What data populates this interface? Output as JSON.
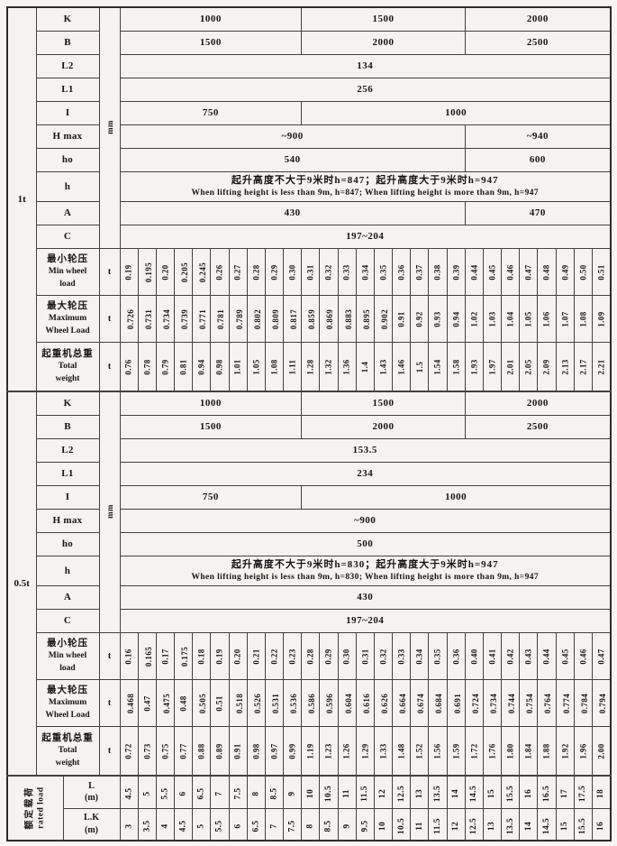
{
  "columns": 27,
  "sections": [
    {
      "load": "1t",
      "dim_unit": "mm",
      "dims": [
        {
          "label": "K",
          "cells": [
            [
              "1000",
              10
            ],
            [
              "1500",
              9
            ],
            [
              "2000",
              8
            ]
          ]
        },
        {
          "label": "B",
          "cells": [
            [
              "1500",
              10
            ],
            [
              "2000",
              9
            ],
            [
              "2500",
              8
            ]
          ]
        },
        {
          "label": "L2",
          "cells": [
            [
              "134",
              27
            ]
          ]
        },
        {
          "label": "L1",
          "cells": [
            [
              "256",
              27
            ]
          ]
        },
        {
          "label": "I",
          "cells": [
            [
              "750",
              10
            ],
            [
              "1000",
              17
            ]
          ]
        },
        {
          "label": "H max",
          "cells": [
            [
              "~900",
              19
            ],
            [
              "~940",
              8
            ]
          ]
        },
        {
          "label": "ho",
          "cells": [
            [
              "540",
              19
            ],
            [
              "600",
              8
            ]
          ]
        },
        {
          "label": "h",
          "lines": [
            "起升高度不大于9米时h=847；起升高度大于9米时h=947",
            "When lifting height is less than 9m, h=847; When lifting height is more than 9m, h=947"
          ]
        },
        {
          "label": "A",
          "cells": [
            [
              "430",
              19
            ],
            [
              "470",
              8
            ]
          ]
        },
        {
          "label": "C",
          "cells": [
            [
              "197~204",
              27
            ]
          ]
        }
      ],
      "wheels": [
        {
          "lines": [
            "最小轮压",
            "Min wheel",
            "load"
          ],
          "unit": "t",
          "values": [
            "0.19",
            "0.195",
            "0.20",
            "0.205",
            "0.245",
            "0.26",
            "0.27",
            "0.28",
            "0.29",
            "0.30",
            "0.31",
            "0.32",
            "0.33",
            "0.34",
            "0.35",
            "0.36",
            "0.37",
            "0.38",
            "0.39",
            "0.44",
            "0.45",
            "0.46",
            "0.47",
            "0.48",
            "0.49",
            "0.50",
            "0.51"
          ]
        },
        {
          "lines": [
            "最大轮压",
            "Maximum",
            "Wheel Load"
          ],
          "unit": "t",
          "values": [
            "0.726",
            "0.731",
            "0.734",
            "0.739",
            "0.771",
            "0.781",
            "0.789",
            "0.802",
            "0.809",
            "0.817",
            "0.859",
            "0.869",
            "0.883",
            "0.895",
            "0.902",
            "0.91",
            "0.92",
            "0.93",
            "0.94",
            "1.02",
            "1.03",
            "1.04",
            "1.05",
            "1.06",
            "1.07",
            "1.08",
            "1.09"
          ]
        },
        {
          "lines": [
            "起重机总重",
            "Total",
            "weight"
          ],
          "unit": "t",
          "values": [
            "0.76",
            "0.78",
            "0.79",
            "0.81",
            "0.94",
            "0.98",
            "1.01",
            "1.05",
            "1.08",
            "1.11",
            "1.28",
            "1.32",
            "1.36",
            "1.4",
            "1.43",
            "1.46",
            "1.5",
            "1.54",
            "1.58",
            "1.93",
            "1.97",
            "2.01",
            "2.05",
            "2.09",
            "2.13",
            "2.17",
            "2.21"
          ]
        }
      ]
    },
    {
      "load": "0.5t",
      "dim_unit": "mm",
      "dims": [
        {
          "label": "K",
          "cells": [
            [
              "1000",
              10
            ],
            [
              "1500",
              9
            ],
            [
              "2000",
              8
            ]
          ]
        },
        {
          "label": "B",
          "cells": [
            [
              "1500",
              10
            ],
            [
              "2000",
              9
            ],
            [
              "2500",
              8
            ]
          ]
        },
        {
          "label": "L2",
          "cells": [
            [
              "153.5",
              27
            ]
          ]
        },
        {
          "label": "L1",
          "cells": [
            [
              "234",
              27
            ]
          ]
        },
        {
          "label": "I",
          "cells": [
            [
              "750",
              10
            ],
            [
              "1000",
              17
            ]
          ]
        },
        {
          "label": "H max",
          "cells": [
            [
              "~900",
              27
            ]
          ]
        },
        {
          "label": "ho",
          "cells": [
            [
              "500",
              27
            ]
          ]
        },
        {
          "label": "h",
          "lines": [
            "起升高度不大于9米时h=830；起升高度大于9米时h=947",
            "When lifting height is less than 9m, h=830; When lifting height is more than 9m, h=947"
          ]
        },
        {
          "label": "A",
          "cells": [
            [
              "430",
              27
            ]
          ]
        },
        {
          "label": "C",
          "cells": [
            [
              "197~204",
              27
            ]
          ]
        }
      ],
      "wheels": [
        {
          "lines": [
            "最小轮压",
            "Min wheel",
            "load"
          ],
          "unit": "t",
          "values": [
            "0.16",
            "0.165",
            "0.17",
            "0.175",
            "0.18",
            "0.19",
            "0.20",
            "0.21",
            "0.22",
            "0.23",
            "0.28",
            "0.29",
            "0.30",
            "0.31",
            "0.32",
            "0.33",
            "0.34",
            "0.35",
            "0.36",
            "0.40",
            "0.41",
            "0.42",
            "0.43",
            "0.44",
            "0.45",
            "0.46",
            "0.47"
          ]
        },
        {
          "lines": [
            "最大轮压",
            "Maximum",
            "Wheel Load"
          ],
          "unit": "t",
          "values": [
            "0.468",
            "0.47",
            "0.475",
            "0.48",
            "0.505",
            "0.51",
            "0.518",
            "0.526",
            "0.531",
            "0.536",
            "0.586",
            "0.596",
            "0.604",
            "0.616",
            "0.626",
            "0.664",
            "0.674",
            "0.684",
            "0.691",
            "0.724",
            "0.734",
            "0.744",
            "0.754",
            "0.764",
            "0.774",
            "0.784",
            "0.794"
          ]
        },
        {
          "lines": [
            "起重机总重",
            "Total",
            "weight"
          ],
          "unit": "t",
          "values": [
            "0.72",
            "0.73",
            "0.75",
            "0.77",
            "0.88",
            "0.89",
            "0.91",
            "0.98",
            "0.97",
            "0.99",
            "1.19",
            "1.23",
            "1.26",
            "1.29",
            "1.33",
            "1.48",
            "1.52",
            "1.56",
            "1.59",
            "1.72",
            "1.76",
            "1.80",
            "1.84",
            "1.88",
            "1.92",
            "1.96",
            "2.00"
          ]
        }
      ]
    }
  ],
  "bottom": {
    "rated_cn": "额定载荷",
    "rated_en": "rated load",
    "rows": [
      {
        "label": "L",
        "unit": "(m)",
        "values": [
          "4.5",
          "5",
          "5.5",
          "6",
          "6.5",
          "7",
          "7.5",
          "8",
          "8.5",
          "9",
          "10",
          "10.5",
          "11",
          "11.5",
          "12",
          "12.5",
          "13",
          "13.5",
          "14",
          "14.5",
          "15",
          "15.5",
          "16",
          "16.5",
          "17",
          "17.5",
          "18"
        ]
      },
      {
        "label": "L.K",
        "unit": "(m)",
        "values": [
          "3",
          "3.5",
          "4",
          "4.5",
          "5",
          "5.5",
          "6",
          "6.5",
          "7",
          "7.5",
          "8",
          "8.5",
          "9",
          "9.5",
          "10",
          "10.5",
          "11",
          "11.5",
          "12",
          "12.5",
          "13",
          "13.5",
          "14",
          "14.5",
          "15",
          "15.5",
          "16"
        ]
      }
    ]
  }
}
